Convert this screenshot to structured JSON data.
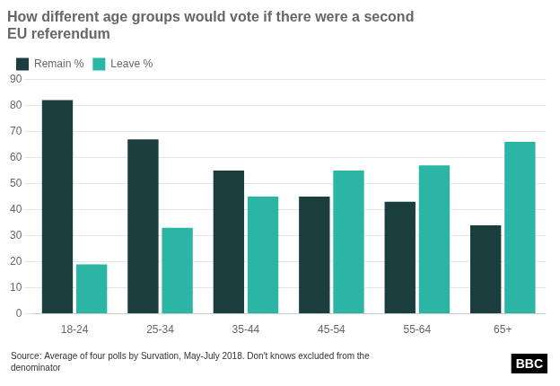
{
  "chart_data": {
    "type": "bar",
    "title": "How different age groups would vote if there were a second\nEU referendum",
    "categories": [
      "18-24",
      "25-34",
      "35-44",
      "45-54",
      "55-64",
      "65+"
    ],
    "series": [
      {
        "name": "Remain %",
        "color": "#1a3d3d",
        "values": [
          82,
          67,
          55,
          45,
          43,
          34
        ]
      },
      {
        "name": "Leave %",
        "color": "#2ab5a5",
        "values": [
          19,
          33,
          45,
          55,
          57,
          66
        ]
      }
    ],
    "ylim": [
      0,
      90
    ],
    "yticks": [
      0,
      10,
      20,
      30,
      40,
      50,
      60,
      70,
      80,
      90
    ],
    "grid": true,
    "legend": "upper left",
    "annotations": [
      "Source: Average of four polls by Survation, May-July 2018. Don't knows excluded from the\ndenominator",
      "BBC"
    ]
  }
}
